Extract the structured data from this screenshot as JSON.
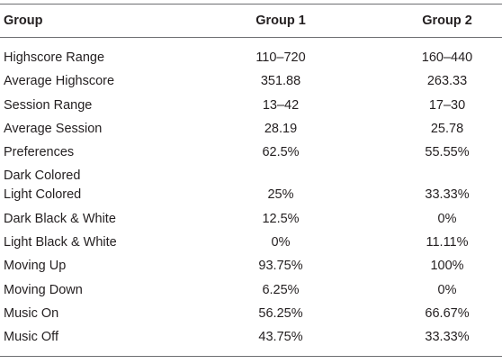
{
  "table": {
    "headers": [
      "Group",
      "Group 1",
      "Group 2"
    ],
    "rows": [
      {
        "label": "Highscore Range",
        "g1": "110–720",
        "g2": "160–440"
      },
      {
        "label": "Average Highscore",
        "g1": "351.88",
        "g2": "263.33"
      },
      {
        "label": "Session Range",
        "g1": "13–42",
        "g2": "17–30"
      },
      {
        "label": "Average Session",
        "g1": "28.19",
        "g2": "25.78"
      },
      {
        "label": "Preferences",
        "sublabel": "Dark Colored",
        "g1": "62.5%",
        "g2": "55.55%"
      },
      {
        "label": "Light Colored",
        "g1": "25%",
        "g2": "33.33%"
      },
      {
        "label": "Dark Black & White",
        "g1": "12.5%",
        "g2": "0%"
      },
      {
        "label": "Light Black & White",
        "g1": "0%",
        "g2": "11.11%"
      },
      {
        "label": "Moving Up",
        "g1": "93.75%",
        "g2": "100%"
      },
      {
        "label": "Moving Down",
        "g1": "6.25%",
        "g2": "0%"
      },
      {
        "label": "Music On",
        "g1": "56.25%",
        "g2": "66.67%"
      },
      {
        "label": "Music Off",
        "g1": "43.75%",
        "g2": "33.33%"
      }
    ]
  }
}
